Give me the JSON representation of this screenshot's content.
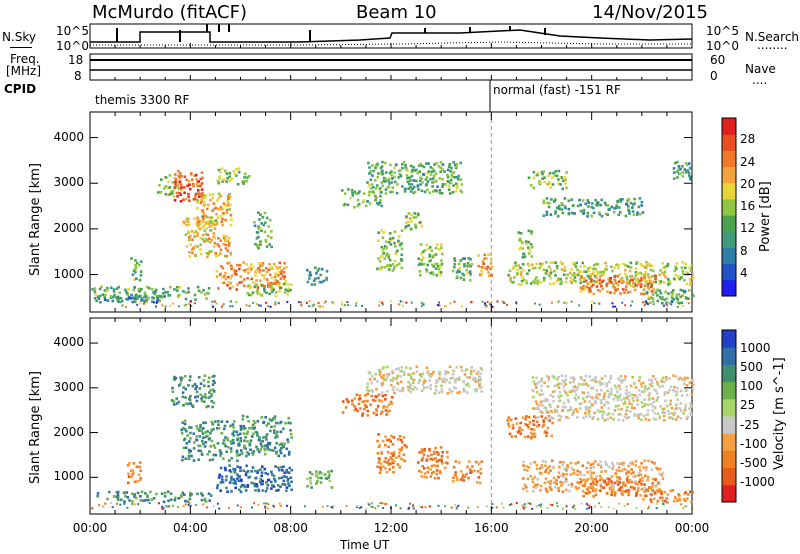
{
  "header": {
    "station": "McMurdo (fitACF)",
    "beam": "Beam 10",
    "date": "14/Nov/2015"
  },
  "strips": {
    "nsky_label": "N.Sky",
    "nsearch_label": "N.Search",
    "nsearch_dots": "........",
    "noise_ticks": [
      "10^5",
      "10^0"
    ],
    "noise_right_ticks": [
      "10^5",
      "10^0"
    ],
    "freq_label_1": "Freq.",
    "freq_label_2": "[MHz]",
    "freq_ticks": [
      "18",
      "8"
    ],
    "nave_label": "Nave",
    "nave_dots": "....",
    "nave_ticks": [
      "60",
      "0"
    ],
    "cpid_label": "CPID",
    "cpid_1": "themis 3300 RF",
    "cpid_2": "normal (fast) -151 RF"
  },
  "colors": {
    "power": [
      "#1e1ef0",
      "#1f52c8",
      "#2f7ea8",
      "#3f9a7a",
      "#4aa34a",
      "#8ec63f",
      "#e8d637",
      "#f2a43a",
      "#f07a2a",
      "#e84e1f",
      "#e01e1e"
    ],
    "velocity": [
      "#2040c8",
      "#2f6fa8",
      "#3f8f6f",
      "#6ab34a",
      "#a6d66a",
      "#c8c8c8",
      "#f4a040",
      "#f08020",
      "#e85a1a",
      "#e02020"
    ]
  },
  "chart_data": [
    {
      "type": "heatmap",
      "title": "",
      "xlabel": "Time UT",
      "ylabel": "Slant Range [km]",
      "colorbar_label": "Power [dB]",
      "colorbar_ticks": [
        "28",
        "24",
        "20",
        "16",
        "12",
        "8",
        "4"
      ],
      "x_ticks": [
        "00:00",
        "04:00",
        "08:00",
        "12:00",
        "16:00",
        "20:00",
        "00:00"
      ],
      "y_ticks": [
        "4000",
        "3000",
        "2000",
        "1000"
      ],
      "xlim": [
        0,
        24
      ],
      "ylim": [
        180,
        4560
      ],
      "clim": [
        0,
        30
      ],
      "blobs": [
        {
          "t0": 0.0,
          "t1": 4.8,
          "r0": 480,
          "r1": 760,
          "v": 12
        },
        {
          "t0": 0.2,
          "t1": 3.0,
          "r0": 420,
          "r1": 560,
          "v": 8
        },
        {
          "t0": 2.6,
          "t1": 3.6,
          "r0": 2700,
          "r1": 3200,
          "v": 16
        },
        {
          "t0": 3.3,
          "t1": 4.5,
          "r0": 2600,
          "r1": 3300,
          "v": 26
        },
        {
          "t0": 4.2,
          "t1": 5.6,
          "r0": 2100,
          "r1": 2800,
          "v": 20
        },
        {
          "t0": 5.0,
          "t1": 6.4,
          "r0": 3000,
          "r1": 3350,
          "v": 14
        },
        {
          "t0": 3.6,
          "t1": 5.0,
          "r0": 1900,
          "r1": 2300,
          "v": 18
        },
        {
          "t0": 3.8,
          "t1": 5.6,
          "r0": 1400,
          "r1": 1900,
          "v": 20
        },
        {
          "t0": 5.0,
          "t1": 7.8,
          "r0": 700,
          "r1": 1300,
          "v": 22
        },
        {
          "t0": 6.2,
          "t1": 8.0,
          "r0": 550,
          "r1": 850,
          "v": 14
        },
        {
          "t0": 1.6,
          "t1": 2.0,
          "r0": 900,
          "r1": 1400,
          "v": 14
        },
        {
          "t0": 6.5,
          "t1": 7.2,
          "r0": 1600,
          "r1": 2400,
          "v": 12
        },
        {
          "t0": 8.6,
          "t1": 9.4,
          "r0": 800,
          "r1": 1200,
          "v": 10
        },
        {
          "t0": 10.0,
          "t1": 11.6,
          "r0": 2500,
          "r1": 2900,
          "v": 12
        },
        {
          "t0": 11.0,
          "t1": 14.8,
          "r0": 2800,
          "r1": 3500,
          "v": 12
        },
        {
          "t0": 12.4,
          "t1": 13.2,
          "r0": 2000,
          "r1": 2400,
          "v": 14
        },
        {
          "t0": 11.4,
          "t1": 12.4,
          "r0": 1100,
          "r1": 2000,
          "v": 14
        },
        {
          "t0": 13.0,
          "t1": 14.0,
          "r0": 1000,
          "r1": 1700,
          "v": 14
        },
        {
          "t0": 14.4,
          "t1": 15.2,
          "r0": 900,
          "r1": 1400,
          "v": 12
        },
        {
          "t0": 15.4,
          "t1": 16.0,
          "r0": 1000,
          "r1": 1500,
          "v": 22
        },
        {
          "t0": 17.0,
          "t1": 17.6,
          "r0": 1400,
          "r1": 2000,
          "v": 14
        },
        {
          "t0": 17.4,
          "t1": 19.0,
          "r0": 2900,
          "r1": 3300,
          "v": 14
        },
        {
          "t0": 18.0,
          "t1": 22.0,
          "r0": 2300,
          "r1": 2700,
          "v": 10
        },
        {
          "t0": 16.6,
          "t1": 24.0,
          "r0": 800,
          "r1": 1300,
          "v": 16
        },
        {
          "t0": 19.5,
          "t1": 22.5,
          "r0": 600,
          "r1": 1000,
          "v": 24
        },
        {
          "t0": 22.0,
          "t1": 24.0,
          "r0": 400,
          "r1": 700,
          "v": 12
        },
        {
          "t0": 23.2,
          "t1": 24.0,
          "r0": 3100,
          "r1": 3500,
          "v": 10
        }
      ]
    },
    {
      "type": "heatmap",
      "title": "",
      "xlabel": "Time UT",
      "ylabel": "Slant Range [km]",
      "colorbar_label": "Velocity [m s^-1]",
      "colorbar_ticks": [
        "1000",
        "500",
        "100",
        "25",
        "-25",
        "-100",
        "-500",
        "-1000"
      ],
      "x_ticks": [
        "00:00",
        "04:00",
        "08:00",
        "12:00",
        "16:00",
        "20:00",
        "00:00"
      ],
      "y_ticks": [
        "4000",
        "3000",
        "2000",
        "1000"
      ],
      "xlim": [
        0,
        24
      ],
      "ylim": [
        180,
        4560
      ],
      "blobs": [
        {
          "t0": 0.2,
          "t1": 4.8,
          "r0": 480,
          "r1": 720,
          "v": 2
        },
        {
          "t0": 1.4,
          "t1": 2.0,
          "r0": 900,
          "r1": 1400,
          "v": 7
        },
        {
          "t0": 3.2,
          "t1": 5.0,
          "r0": 2600,
          "r1": 3300,
          "v": 2
        },
        {
          "t0": 3.6,
          "t1": 6.0,
          "r0": 1400,
          "r1": 2300,
          "v": 2
        },
        {
          "t0": 5.0,
          "t1": 8.0,
          "r0": 700,
          "r1": 1300,
          "v": 1
        },
        {
          "t0": 6.0,
          "t1": 8.0,
          "r0": 1500,
          "r1": 2400,
          "v": 2
        },
        {
          "t0": 8.6,
          "t1": 9.6,
          "r0": 800,
          "r1": 1200,
          "v": 3
        },
        {
          "t0": 10.0,
          "t1": 12.0,
          "r0": 2400,
          "r1": 2900,
          "v": 7
        },
        {
          "t0": 11.0,
          "t1": 15.6,
          "r0": 2900,
          "r1": 3500,
          "v": 5
        },
        {
          "t0": 11.4,
          "t1": 12.6,
          "r0": 1100,
          "r1": 2000,
          "v": 7
        },
        {
          "t0": 13.0,
          "t1": 14.2,
          "r0": 1000,
          "r1": 1700,
          "v": 7
        },
        {
          "t0": 14.4,
          "t1": 15.6,
          "r0": 900,
          "r1": 1400,
          "v": 7
        },
        {
          "t0": 16.6,
          "t1": 18.4,
          "r0": 1900,
          "r1": 2400,
          "v": 7
        },
        {
          "t0": 17.6,
          "t1": 24.0,
          "r0": 2300,
          "r1": 3300,
          "v": 5
        },
        {
          "t0": 17.2,
          "t1": 22.8,
          "r0": 700,
          "r1": 1400,
          "v": 6
        },
        {
          "t0": 19.5,
          "t1": 22.5,
          "r0": 600,
          "r1": 1000,
          "v": 7
        },
        {
          "t0": 22.0,
          "t1": 24.0,
          "r0": 450,
          "r1": 750,
          "v": 7
        }
      ]
    }
  ]
}
